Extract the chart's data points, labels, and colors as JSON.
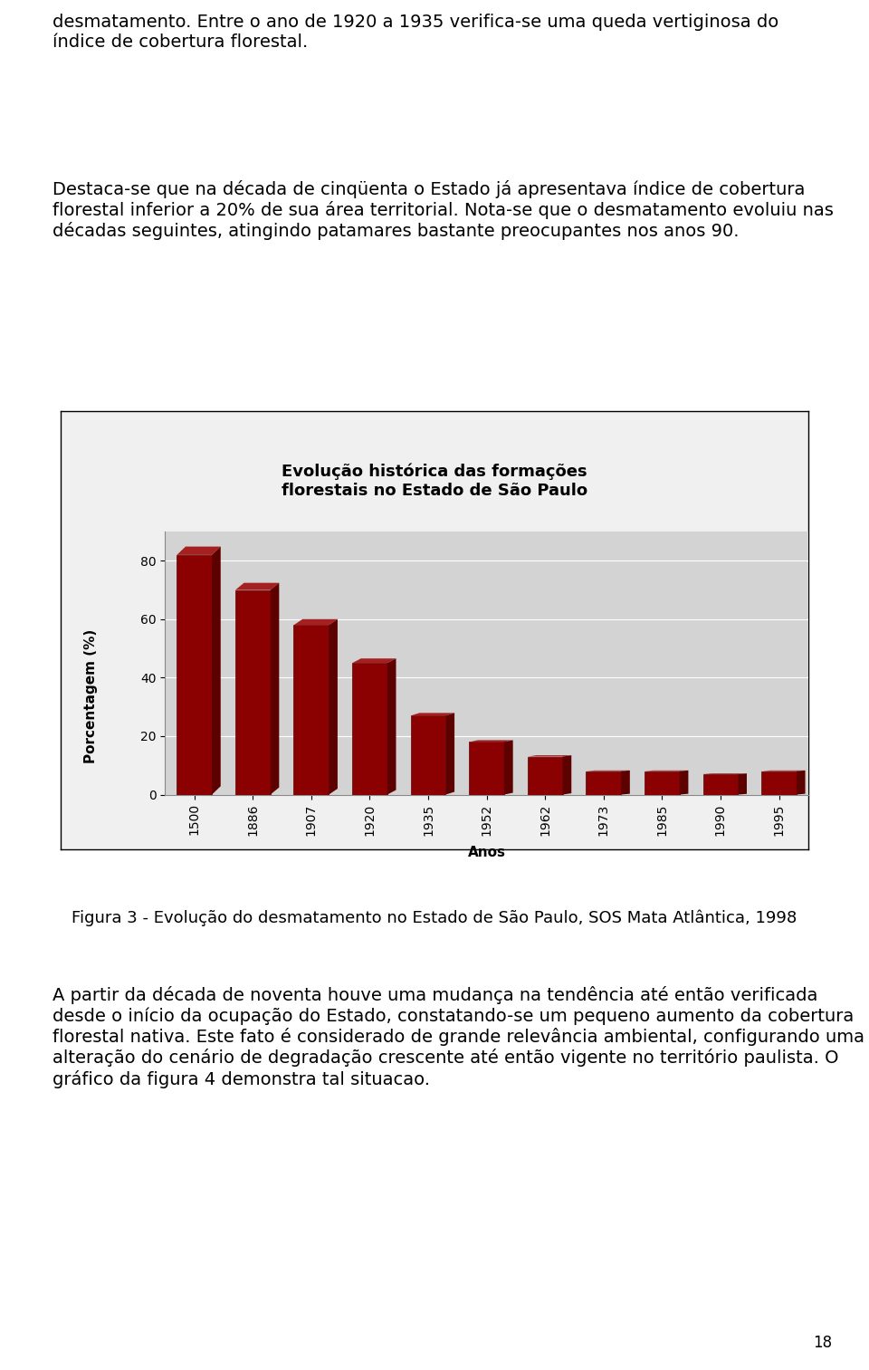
{
  "title_line1": "Evolução histórica das formações",
  "title_line2": "florestais no Estado de São Paulo",
  "xlabel": "Anos",
  "ylabel": "Porcentagem (%)",
  "categories": [
    "1500",
    "1886",
    "1907",
    "1920",
    "1935",
    "1952",
    "1962",
    "1973",
    "1985",
    "1990",
    "1995"
  ],
  "values": [
    82,
    70,
    58,
    45,
    27,
    18,
    13,
    8,
    8,
    7,
    8
  ],
  "bar_color_face": "#8B0000",
  "bar_color_dark": "#5C0000",
  "bar_color_light": "#A52020",
  "ylim": [
    0,
    90
  ],
  "yticks": [
    0,
    20,
    40,
    60,
    80
  ],
  "chart_bg": "#D3D3D3",
  "outer_bg": "#F0F0F0",
  "page_bg": "#FFFFFF",
  "border_color": "#000000",
  "text_color": "#000000",
  "paragraph1_line1": "desmatamento. Entre o ano de 1920 a 1935 verifica-se uma queda vertiginosa do",
  "paragraph1_line2": "índice de cobertura florestal.",
  "paragraph2": "Destaca-se que na década de cinqüenta o Estado já apresentava índice de cobertura florestal inferior a 20% de sua área territorial. Nota-se que o desmatamento evoluiu nas décadas seguintes, atingindo patamares bastante preocupantes nos anos 90.",
  "caption": "Figura 3 - Evolução do desmatamento no Estado de São Paulo, SOS Mata Atlântica, 1998",
  "paragraph3": "A partir da década de noventa houve uma mudança na tendência até então verificada desde o início da ocupação do Estado, constatando-se um pequeno aumento da cobertura florestal nativa. Este fato é considerado de grande relevância ambiental, configurando uma alteração do cenário de degradação crescente até então vigente no território paulista. O gráfico da figura 4 demonstra tal situacao.",
  "page_number": "18",
  "title_fontsize": 13,
  "axis_label_fontsize": 11,
  "tick_fontsize": 10,
  "text_fontsize": 14,
  "caption_fontsize": 13
}
